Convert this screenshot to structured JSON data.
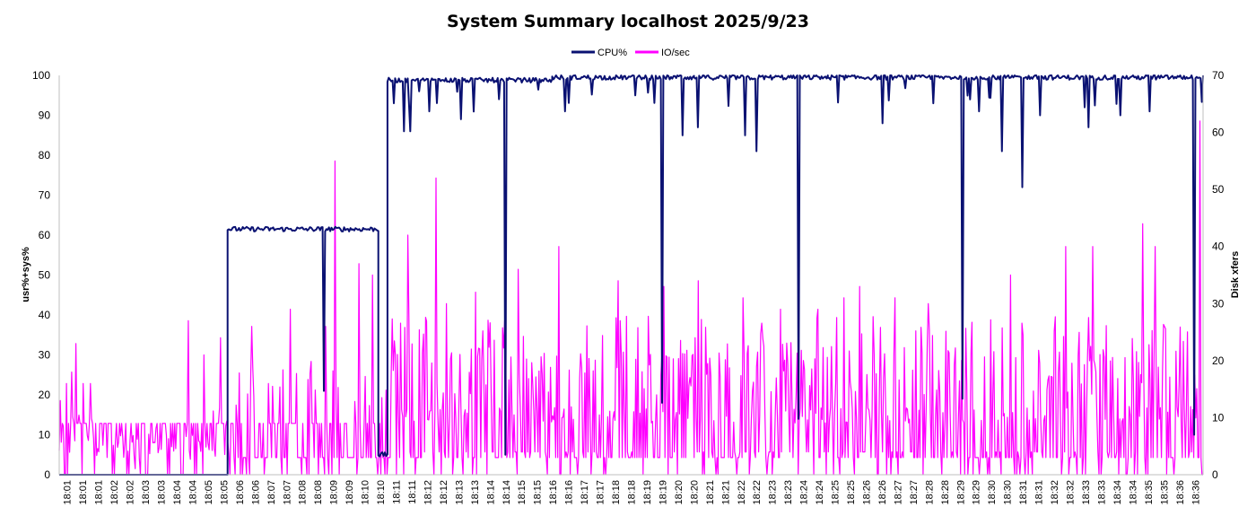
{
  "chart_data": {
    "type": "line",
    "title": "System Summary localhost  2025/9/23",
    "ylabel_left": "usr%+sys%",
    "ylabel_right": "Disk xfers",
    "ylim_left": [
      0,
      100
    ],
    "ylim_right": [
      0,
      70
    ],
    "yticks_left": [
      "0",
      "10",
      "20",
      "30",
      "40",
      "50",
      "60",
      "70",
      "80",
      "90",
      "100"
    ],
    "yticks_right": [
      "0",
      "10",
      "20",
      "30",
      "40",
      "50",
      "60",
      "70"
    ],
    "grid": false,
    "legend_position": "top-center",
    "x_labels": [
      "18:01",
      "18:01",
      "18:01",
      "18:02",
      "18:02",
      "18:03",
      "18:03",
      "18:04",
      "18:04",
      "18:05",
      "18:05",
      "18:06",
      "18:06",
      "18:07",
      "18:07",
      "18:08",
      "18:08",
      "18:09",
      "18:09",
      "18:10",
      "18:10",
      "18:11",
      "18:11",
      "18:12",
      "18:12",
      "18:13",
      "18:13",
      "18:14",
      "18:14",
      "18:15",
      "18:15",
      "18:16",
      "18:16",
      "18:17",
      "18:17",
      "18:18",
      "18:18",
      "18:19",
      "18:19",
      "18:20",
      "18:20",
      "18:21",
      "18:21",
      "18:22",
      "18:22",
      "18:23",
      "18:23",
      "18:24",
      "18:24",
      "18:25",
      "18:25",
      "18:26",
      "18:26",
      "18:27",
      "18:27",
      "18:28",
      "18:28",
      "18:29",
      "18:29",
      "18:30",
      "18:30",
      "18:31",
      "18:31",
      "18:32",
      "18:32",
      "18:33",
      "18:33",
      "18:34",
      "18:34",
      "18:35",
      "18:35",
      "18:36",
      "18:36"
    ],
    "series": [
      {
        "name": "CPU%",
        "axis": "left",
        "color": "#0a1172",
        "segments": [
          {
            "from": 0,
            "to": 0.1472,
            "level": 0
          },
          {
            "from": 0.1472,
            "to": 0.279,
            "level": 61.5,
            "dips": [
              {
                "at": 0.2317,
                "to": 21
              }
            ]
          },
          {
            "from": 0.279,
            "to": 0.287,
            "level": 5
          },
          {
            "from": 0.287,
            "to": 0.431,
            "level": 98.8,
            "dips": [
              {
                "at": 0.301,
                "to": 86
              },
              {
                "at": 0.3074,
                "to": 86
              },
              {
                "at": 0.3239,
                "to": 91
              },
              {
                "at": 0.3513,
                "to": 89
              },
              {
                "at": 0.3898,
                "to": 5
              }
            ]
          },
          {
            "from": 0.431,
            "to": 0.517,
            "level": 99.5,
            "dips": [
              {
                "at": 0.4419,
                "to": 91
              },
              {
                "at": 0.5041,
                "to": 95
              }
            ]
          },
          {
            "from": 0.517,
            "to": 0.555,
            "level": 99.5,
            "dips": [
              {
                "at": 0.527,
                "to": 18
              },
              {
                "at": 0.545,
                "to": 85
              }
            ]
          },
          {
            "from": 0.555,
            "to": 0.672,
            "level": 99.5,
            "dips": [
              {
                "at": 0.5579,
                "to": 87
              },
              {
                "at": 0.5993,
                "to": 85
              },
              {
                "at": 0.6101,
                "to": 81
              },
              {
                "at": 0.646,
                "to": 14
              }
            ]
          },
          {
            "from": 0.672,
            "to": 0.813,
            "level": 99.5,
            "dips": [
              {
                "at": 0.72,
                "to": 88
              },
              {
                "at": 0.764,
                "to": 93
              },
              {
                "at": 0.79,
                "to": 19
              },
              {
                "at": 0.804,
                "to": 91
              }
            ]
          },
          {
            "from": 0.813,
            "to": 1.0,
            "level": 99.5,
            "dips": [
              {
                "at": 0.824,
                "to": 81
              },
              {
                "at": 0.842,
                "to": 72
              },
              {
                "at": 0.857,
                "to": 90
              },
              {
                "at": 0.9,
                "to": 87
              },
              {
                "at": 0.928,
                "to": 90
              },
              {
                "at": 0.953,
                "to": 91
              },
              {
                "at": 0.992,
                "to": 10
              }
            ]
          }
        ]
      },
      {
        "name": "IO/sec",
        "axis": "right",
        "color": "#ff00ff",
        "peaks": [
          {
            "at": 0.0012,
            "value": 13
          },
          {
            "at": 0.006,
            "value": 16
          },
          {
            "at": 0.0107,
            "value": 18
          },
          {
            "at": 0.0143,
            "value": 23
          },
          {
            "at": 0.021,
            "value": 16
          },
          {
            "at": 0.0275,
            "value": 16
          },
          {
            "at": 0.1124,
            "value": 27
          },
          {
            "at": 0.1263,
            "value": 21
          },
          {
            "at": 0.1413,
            "value": 24
          },
          {
            "at": 0.168,
            "value": 26
          },
          {
            "at": 0.2024,
            "value": 29
          },
          {
            "at": 0.233,
            "value": 26
          },
          {
            "at": 0.2413,
            "value": 55
          },
          {
            "at": 0.262,
            "value": 37
          },
          {
            "at": 0.274,
            "value": 35
          },
          {
            "at": 0.305,
            "value": 42
          },
          {
            "at": 0.329,
            "value": 52
          },
          {
            "at": 0.3387,
            "value": 30
          },
          {
            "at": 0.364,
            "value": 32
          },
          {
            "at": 0.389,
            "value": 27
          },
          {
            "at": 0.401,
            "value": 36
          },
          {
            "at": 0.437,
            "value": 40
          },
          {
            "at": 0.489,
            "value": 34
          },
          {
            "at": 0.529,
            "value": 33
          },
          {
            "at": 0.559,
            "value": 34
          },
          {
            "at": 0.598,
            "value": 31
          },
          {
            "at": 0.631,
            "value": 29
          },
          {
            "at": 0.663,
            "value": 29
          },
          {
            "at": 0.686,
            "value": 31
          },
          {
            "at": 0.7,
            "value": 33
          },
          {
            "at": 0.731,
            "value": 31
          },
          {
            "at": 0.76,
            "value": 30
          },
          {
            "at": 0.832,
            "value": 35
          },
          {
            "at": 0.88,
            "value": 40
          },
          {
            "at": 0.904,
            "value": 40
          },
          {
            "at": 0.947,
            "value": 44
          },
          {
            "at": 0.958,
            "value": 40
          },
          {
            "at": 0.997,
            "value": 62
          }
        ]
      }
    ]
  }
}
